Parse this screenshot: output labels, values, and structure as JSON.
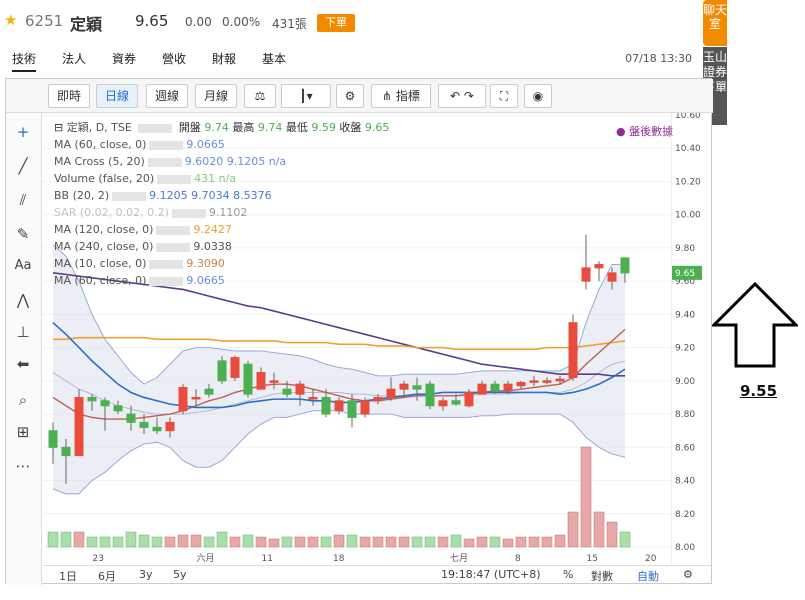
{
  "stock": {
    "code": "6251",
    "name": "定穎",
    "price": "9.65",
    "change": "0.00",
    "change_pct": "0.00%",
    "volume": "431張",
    "order_label": "下單"
  },
  "tabs": [
    "技術",
    "法人",
    "資券",
    "營收",
    "財報",
    "基本"
  ],
  "datetime": "07/18 13:30",
  "side": {
    "chat": "聊天室",
    "broker": "玉山證券下單"
  },
  "toolbar": {
    "items": [
      "即時",
      "日線",
      "週線",
      "月線",
      "指標"
    ],
    "active": "日線"
  },
  "after_hours": "● 盤後數據",
  "legend": {
    "title": "定穎, D, TSE",
    "ohlc_labels": [
      "開盤",
      "最高",
      "最低",
      "收盤"
    ],
    "ohlc_values": [
      "9.74",
      "9.74",
      "9.59",
      "9.65"
    ],
    "rows": [
      {
        "label": "MA (60, close, 0)",
        "values": "9.0665",
        "color": "#6a8fd8"
      },
      {
        "label": "MA Cross (5, 20)",
        "values": "9.6020 9.1205 n/a",
        "color": "#6a8fd8"
      },
      {
        "label": "Volume (false, 20)",
        "values": "431 n/a",
        "color": "#7ccd7c"
      },
      {
        "label": "BB (20, 2)",
        "values": "9.1205 9.7034 8.5376",
        "color": "#4a7bd0"
      },
      {
        "label": "SAR (0.02, 0.02, 0.2)",
        "values": "9.1102",
        "color": "#999999"
      },
      {
        "label": "MA (120, close, 0)",
        "values": "9.2427",
        "color": "#f0a030"
      },
      {
        "label": "MA (240, close, 0)",
        "values": "9.0338",
        "color": "#555555"
      },
      {
        "label": "MA (10, close, 0)",
        "values": "9.3090",
        "color": "#d08040"
      },
      {
        "label": "MA (60, close, 0)",
        "values": "9.0665",
        "color": "#6a8fd8"
      }
    ]
  },
  "price_axis": [
    "10.60",
    "10.40",
    "10.20",
    "10.00",
    "9.80",
    "9.60",
    "9.40",
    "9.20",
    "9.00",
    "8.80",
    "8.60",
    "8.40",
    "8.20",
    "8.00"
  ],
  "current_price_tag": "9.65",
  "time_axis": [
    "23",
    "六月",
    "11",
    "18",
    "七月",
    "8",
    "15",
    "20"
  ],
  "bottom": {
    "ranges": [
      "1日",
      "6月",
      "3y",
      "5y"
    ],
    "clock": "19:18:47 (UTC+8)",
    "pct": "%",
    "log": "對數",
    "auto": "自動"
  },
  "annotation": {
    "price": "9.55"
  },
  "colors": {
    "up": "#e74c3c",
    "down": "#4caf50",
    "bb_fill": "#dde0ee",
    "ma60": "#2a6ec9",
    "ma120": "#f0a030",
    "ma240": "#5b3b8c",
    "ma10": "#c06050"
  },
  "chart_data": {
    "type": "candlestick",
    "ylim": [
      8.0,
      10.6
    ],
    "candles": [
      {
        "o": 8.7,
        "h": 8.75,
        "l": 8.5,
        "c": 8.6
      },
      {
        "o": 8.6,
        "h": 8.65,
        "l": 8.38,
        "c": 8.55
      },
      {
        "o": 8.55,
        "h": 8.95,
        "l": 8.55,
        "c": 8.9
      },
      {
        "o": 8.9,
        "h": 8.92,
        "l": 8.82,
        "c": 8.88
      },
      {
        "o": 8.88,
        "h": 8.9,
        "l": 8.7,
        "c": 8.85
      },
      {
        "o": 8.85,
        "h": 8.88,
        "l": 8.8,
        "c": 8.82
      },
      {
        "o": 8.8,
        "h": 8.85,
        "l": 8.7,
        "c": 8.75
      },
      {
        "o": 8.75,
        "h": 8.8,
        "l": 8.68,
        "c": 8.72
      },
      {
        "o": 8.72,
        "h": 8.78,
        "l": 8.68,
        "c": 8.7
      },
      {
        "o": 8.7,
        "h": 8.78,
        "l": 8.66,
        "c": 8.75
      },
      {
        "o": 8.82,
        "h": 8.98,
        "l": 8.8,
        "c": 8.96
      },
      {
        "o": 8.9,
        "h": 8.95,
        "l": 8.85,
        "c": 8.9
      },
      {
        "o": 8.95,
        "h": 8.98,
        "l": 8.9,
        "c": 8.92
      },
      {
        "o": 9.12,
        "h": 9.15,
        "l": 8.98,
        "c": 9.0
      },
      {
        "o": 9.02,
        "h": 9.15,
        "l": 9.0,
        "c": 9.14
      },
      {
        "o": 9.1,
        "h": 9.12,
        "l": 8.9,
        "c": 8.92
      },
      {
        "o": 8.95,
        "h": 9.08,
        "l": 8.95,
        "c": 9.05
      },
      {
        "o": 9.0,
        "h": 9.05,
        "l": 8.95,
        "c": 9.0
      },
      {
        "o": 8.95,
        "h": 9.0,
        "l": 8.9,
        "c": 8.92
      },
      {
        "o": 8.92,
        "h": 9.0,
        "l": 8.85,
        "c": 8.98
      },
      {
        "o": 8.9,
        "h": 8.95,
        "l": 8.85,
        "c": 8.9
      },
      {
        "o": 8.9,
        "h": 8.95,
        "l": 8.78,
        "c": 8.8
      },
      {
        "o": 8.82,
        "h": 8.9,
        "l": 8.8,
        "c": 8.88
      },
      {
        "o": 8.88,
        "h": 8.92,
        "l": 8.72,
        "c": 8.78
      },
      {
        "o": 8.8,
        "h": 8.9,
        "l": 8.78,
        "c": 8.88
      },
      {
        "o": 8.88,
        "h": 8.92,
        "l": 8.86,
        "c": 8.9
      },
      {
        "o": 8.9,
        "h": 9.02,
        "l": 8.88,
        "c": 8.95
      },
      {
        "o": 8.95,
        "h": 9.0,
        "l": 8.9,
        "c": 8.98
      },
      {
        "o": 8.97,
        "h": 9.02,
        "l": 8.88,
        "c": 8.95
      },
      {
        "o": 8.98,
        "h": 9.0,
        "l": 8.83,
        "c": 8.85
      },
      {
        "o": 8.85,
        "h": 8.9,
        "l": 8.82,
        "c": 8.88
      },
      {
        "o": 8.88,
        "h": 8.92,
        "l": 8.85,
        "c": 8.86
      },
      {
        "o": 8.85,
        "h": 8.95,
        "l": 8.84,
        "c": 8.93
      },
      {
        "o": 8.92,
        "h": 9.0,
        "l": 8.92,
        "c": 8.98
      },
      {
        "o": 8.98,
        "h": 9.0,
        "l": 8.92,
        "c": 8.94
      },
      {
        "o": 8.94,
        "h": 9.0,
        "l": 8.92,
        "c": 8.98
      },
      {
        "o": 8.97,
        "h": 9.0,
        "l": 8.95,
        "c": 8.99
      },
      {
        "o": 9.0,
        "h": 9.03,
        "l": 8.97,
        "c": 9.0
      },
      {
        "o": 9.0,
        "h": 9.02,
        "l": 8.98,
        "c": 9.0
      },
      {
        "o": 9.0,
        "h": 9.03,
        "l": 8.98,
        "c": 9.01
      },
      {
        "o": 9.02,
        "h": 9.4,
        "l": 9.0,
        "c": 9.35
      },
      {
        "o": 9.6,
        "h": 9.88,
        "l": 9.55,
        "c": 9.68
      },
      {
        "o": 9.68,
        "h": 9.72,
        "l": 9.6,
        "c": 9.7
      },
      {
        "o": 9.6,
        "h": 9.68,
        "l": 9.55,
        "c": 9.65
      },
      {
        "o": 9.74,
        "h": 9.74,
        "l": 9.59,
        "c": 9.65
      }
    ],
    "volume": [
      0.15,
      0.15,
      0.15,
      0.1,
      0.1,
      0.1,
      0.15,
      0.12,
      0.1,
      0.1,
      0.12,
      0.12,
      0.1,
      0.15,
      0.1,
      0.12,
      0.1,
      0.08,
      0.1,
      0.1,
      0.1,
      0.1,
      0.12,
      0.12,
      0.1,
      0.1,
      0.1,
      0.1,
      0.1,
      0.1,
      0.1,
      0.12,
      0.08,
      0.1,
      0.1,
      0.08,
      0.1,
      0.1,
      0.1,
      0.12,
      0.35,
      1.0,
      0.35,
      0.25,
      0.15
    ],
    "ma60": [
      9.35,
      9.28,
      9.2,
      9.12,
      9.05,
      8.98,
      8.93,
      8.9,
      8.88,
      8.86,
      8.85,
      8.84,
      8.84,
      8.84,
      8.85,
      8.87,
      8.88,
      8.89,
      8.89,
      8.89,
      8.88,
      8.88,
      8.87,
      8.87,
      8.88,
      8.89,
      8.9,
      8.91,
      8.92,
      8.92,
      8.93,
      8.93,
      8.93,
      8.93,
      8.93,
      8.93,
      8.93,
      8.93,
      8.93,
      8.92,
      8.93,
      8.95,
      8.98,
      9.02,
      9.07
    ],
    "ma120": [
      9.25,
      9.25,
      9.26,
      9.26,
      9.26,
      9.26,
      9.26,
      9.26,
      9.25,
      9.25,
      9.25,
      9.25,
      9.25,
      9.24,
      9.24,
      9.24,
      9.24,
      9.24,
      9.23,
      9.23,
      9.23,
      9.23,
      9.22,
      9.22,
      9.22,
      9.21,
      9.21,
      9.21,
      9.2,
      9.2,
      9.2,
      9.19,
      9.19,
      9.19,
      9.19,
      9.19,
      9.19,
      9.19,
      9.2,
      9.2,
      9.2,
      9.21,
      9.22,
      9.23,
      9.24
    ],
    "ma240": [
      9.65,
      9.64,
      9.63,
      9.62,
      9.61,
      9.6,
      9.59,
      9.58,
      9.57,
      9.56,
      9.55,
      9.53,
      9.51,
      9.49,
      9.47,
      9.45,
      9.44,
      9.42,
      9.4,
      9.38,
      9.36,
      9.34,
      9.32,
      9.3,
      9.28,
      9.26,
      9.24,
      9.22,
      9.2,
      9.18,
      9.16,
      9.14,
      9.12,
      9.1,
      9.09,
      9.08,
      9.07,
      9.06,
      9.05,
      9.04,
      9.04,
      9.04,
      9.04,
      9.03,
      9.03
    ],
    "ma10": [
      8.9,
      8.85,
      8.8,
      8.78,
      8.77,
      8.77,
      8.77,
      8.78,
      8.79,
      8.8,
      8.82,
      8.85,
      8.88,
      8.9,
      8.93,
      8.95,
      8.97,
      8.98,
      8.98,
      8.97,
      8.95,
      8.93,
      8.91,
      8.89,
      8.88,
      8.88,
      8.89,
      8.9,
      8.91,
      8.91,
      8.91,
      8.91,
      8.92,
      8.93,
      8.94,
      8.94,
      8.95,
      8.96,
      8.97,
      8.98,
      9.02,
      9.1,
      9.17,
      9.24,
      9.31
    ],
    "bb_upper": [
      9.82,
      9.75,
      9.6,
      9.4,
      9.25,
      9.15,
      9.05,
      8.98,
      9.02,
      9.1,
      9.18,
      9.2,
      9.2,
      9.19,
      9.18,
      9.18,
      9.18,
      9.17,
      9.16,
      9.15,
      9.13,
      9.1,
      9.08,
      9.07,
      9.05,
      9.03,
      9.03,
      9.04,
      9.04,
      9.04,
      9.04,
      9.04,
      9.05,
      9.06,
      9.06,
      9.06,
      9.06,
      9.06,
      9.06,
      9.06,
      9.1,
      9.35,
      9.55,
      9.7,
      9.7
    ],
    "bb_lower": [
      8.35,
      8.32,
      8.32,
      8.4,
      8.45,
      8.52,
      8.58,
      8.62,
      8.63,
      8.6,
      8.52,
      8.48,
      8.48,
      8.52,
      8.6,
      8.68,
      8.74,
      8.78,
      8.78,
      8.8,
      8.82,
      8.82,
      8.82,
      8.8,
      8.8,
      8.8,
      8.8,
      8.78,
      8.78,
      8.78,
      8.78,
      8.78,
      8.78,
      8.79,
      8.79,
      8.8,
      8.8,
      8.8,
      8.8,
      8.8,
      8.75,
      8.66,
      8.6,
      8.56,
      8.54
    ],
    "bb_mid": [
      9.05,
      9.0,
      8.95,
      8.92,
      8.88,
      8.85,
      8.83,
      8.81,
      8.8,
      8.8,
      8.8,
      8.81,
      8.82,
      8.84,
      8.86,
      8.88,
      8.9,
      8.92,
      8.93,
      8.93,
      8.93,
      8.93,
      8.93,
      8.92,
      8.92,
      8.91,
      8.91,
      8.91,
      8.91,
      8.91,
      8.91,
      8.91,
      8.91,
      8.92,
      8.92,
      8.92,
      8.93,
      8.93,
      8.93,
      8.93,
      8.95,
      8.99,
      9.05,
      9.1,
      9.12
    ]
  }
}
